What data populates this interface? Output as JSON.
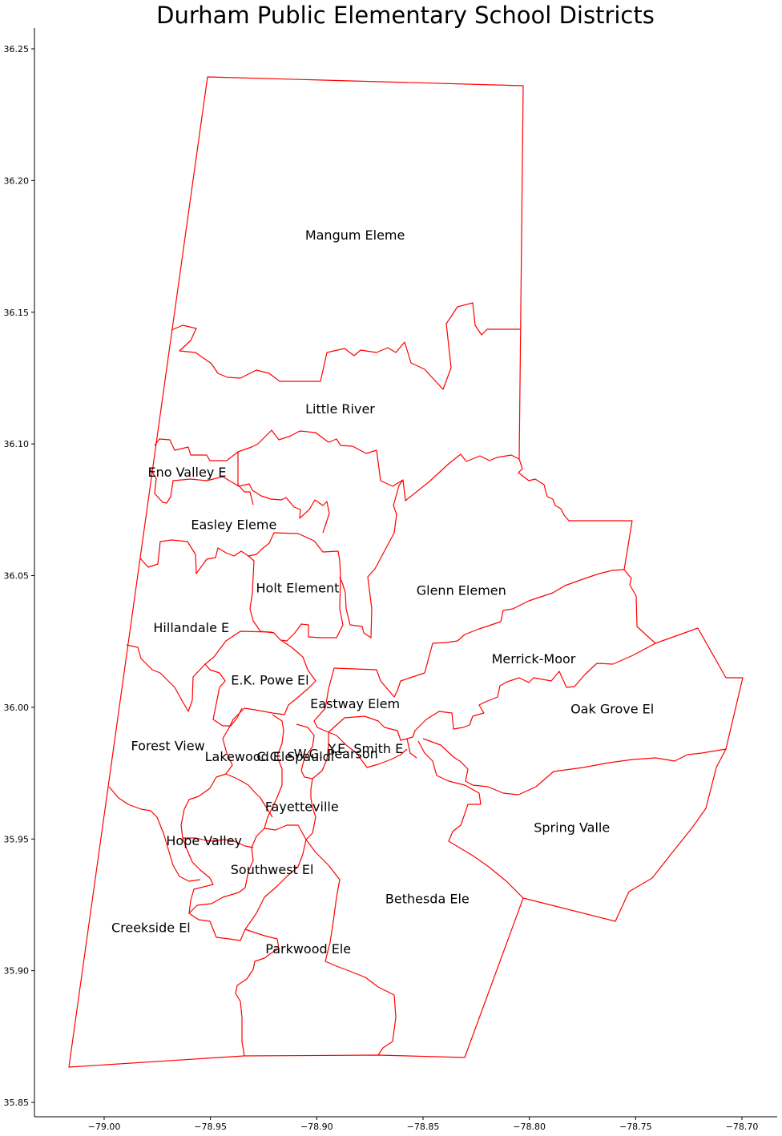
{
  "title": "Durham Public Elementary School Districts",
  "boundary_color": "#ff0000",
  "axes": {
    "x_ticks": [
      "−79.00",
      "−78.95",
      "−78.90",
      "−78.85",
      "−78.80",
      "−78.75",
      "−78.70"
    ],
    "y_ticks": [
      "36.25",
      "36.20",
      "36.15",
      "36.10",
      "36.05",
      "36.00",
      "35.95",
      "35.90",
      "35.85"
    ],
    "x_range": [
      -79.032,
      -78.682
    ],
    "y_range": [
      35.845,
      36.258
    ]
  },
  "districts": [
    {
      "name": "Mangum Eleme",
      "lon": -78.882,
      "lat": 36.179
    },
    {
      "name": "Little River",
      "lon": -78.889,
      "lat": 36.113
    },
    {
      "name": "Eno Valley E",
      "lon": -78.961,
      "lat": 36.089
    },
    {
      "name": "Easley Eleme",
      "lon": -78.939,
      "lat": 36.069
    },
    {
      "name": "Holt Element",
      "lon": -78.909,
      "lat": 36.045
    },
    {
      "name": "Glenn Elemen",
      "lon": -78.832,
      "lat": 36.044
    },
    {
      "name": "Hillandale E",
      "lon": -78.959,
      "lat": 36.03
    },
    {
      "name": "Merrick-Moor",
      "lon": -78.798,
      "lat": 36.018
    },
    {
      "name": "E.K. Powe El",
      "lon": -78.922,
      "lat": 36.01
    },
    {
      "name": "Eastway Elem",
      "lon": -78.882,
      "lat": 36.001
    },
    {
      "name": "Oak Grove El",
      "lon": -78.761,
      "lat": 35.999
    },
    {
      "name": "Forest View",
      "lon": -78.97,
      "lat": 35.985
    },
    {
      "name": "Y.E. Smith E",
      "lon": -78.877,
      "lat": 35.984
    },
    {
      "name": "W.G. Pearson",
      "lon": -78.891,
      "lat": 35.982
    },
    {
      "name": "C.C. Spauldi",
      "lon": -78.91,
      "lat": 35.981
    },
    {
      "name": "Lakewood Ele",
      "lon": -78.932,
      "lat": 35.981
    },
    {
      "name": "Fayetteville",
      "lon": -78.907,
      "lat": 35.962
    },
    {
      "name": "Spring Valle",
      "lon": -78.78,
      "lat": 35.954
    },
    {
      "name": "Hope Valley",
      "lon": -78.953,
      "lat": 35.949
    },
    {
      "name": "Southwest El",
      "lon": -78.921,
      "lat": 35.938
    },
    {
      "name": "Bethesda Ele",
      "lon": -78.848,
      "lat": 35.927
    },
    {
      "name": "Creekside El",
      "lon": -78.978,
      "lat": 35.916
    },
    {
      "name": "Parkwood Ele",
      "lon": -78.904,
      "lat": 35.908
    }
  ]
}
